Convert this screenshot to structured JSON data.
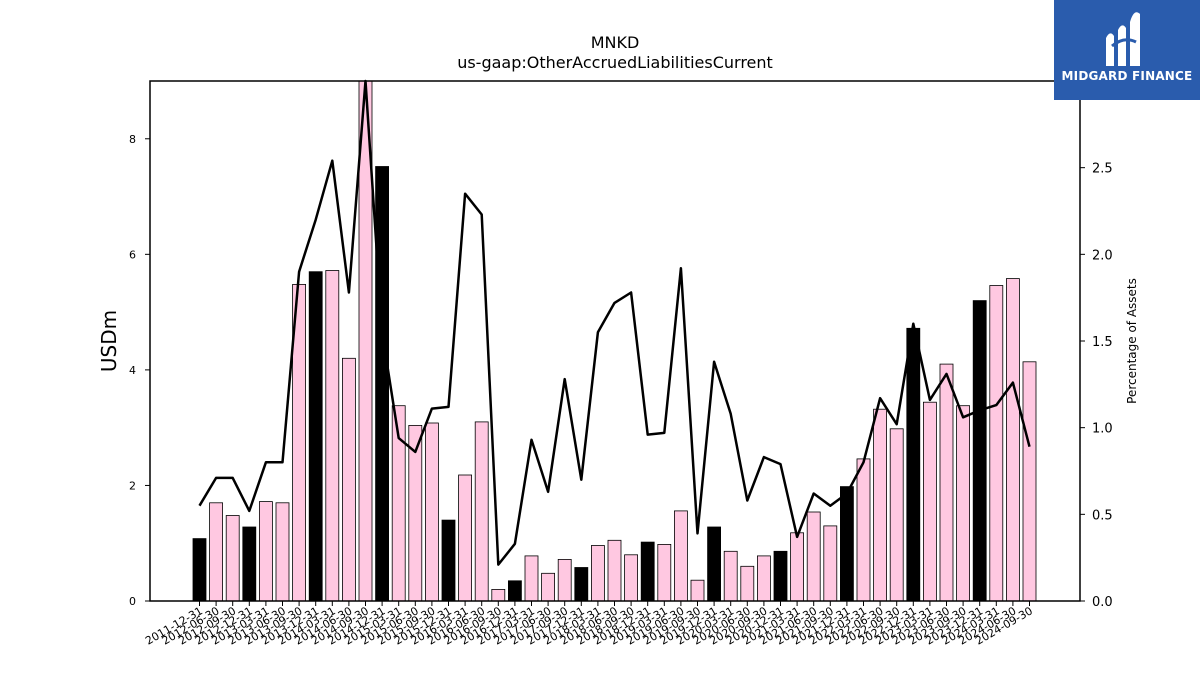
{
  "chart_data": {
    "type": "bar",
    "title": "MNKD",
    "subtitle": "us-gaap:OtherAccruedLiabilitiesCurrent",
    "ylabel": "USDm",
    "y2label": "Percentage of Assets",
    "ylim": [
      0,
      9
    ],
    "y2lim": [
      0,
      3.0
    ],
    "yticks": [
      0,
      2,
      4,
      6,
      8
    ],
    "y2ticks": [
      "0.0",
      "0.5",
      "1.0",
      "1.5",
      "2.0",
      "2.5"
    ],
    "colors": {
      "annual": "#000000",
      "quarterly": "#ffc8e1",
      "line": "#000000"
    },
    "categories": [
      "2011-12-31",
      "2012-06-30",
      "2012-09-30",
      "2012-12-31",
      "2013-03-31",
      "2013-06-30",
      "2013-09-30",
      "2013-12-31",
      "2014-03-31",
      "2014-06-30",
      "2014-09-30",
      "2014-12-31",
      "2015-03-31",
      "2015-06-30",
      "2015-09-30",
      "2015-12-31",
      "2016-03-31",
      "2016-06-30",
      "2016-09-30",
      "2016-12-31",
      "2017-03-31",
      "2017-06-30",
      "2017-09-30",
      "2017-12-31",
      "2018-03-31",
      "2018-06-30",
      "2018-09-30",
      "2018-12-31",
      "2019-03-31",
      "2019-06-30",
      "2019-09-30",
      "2019-12-31",
      "2020-03-31",
      "2020-06-30",
      "2020-09-30",
      "2020-12-31",
      "2021-03-31",
      "2021-06-30",
      "2021-09-30",
      "2021-12-31",
      "2022-03-31",
      "2022-06-30",
      "2022-09-30",
      "2022-12-31",
      "2023-03-31",
      "2023-06-30",
      "2023-09-30",
      "2023-12-31",
      "2024-03-31",
      "2024-06-30",
      "2024-09-30"
    ],
    "values": [
      1.08,
      1.7,
      1.48,
      1.28,
      1.72,
      1.7,
      5.48,
      5.7,
      5.72,
      4.2,
      9.0,
      7.52,
      3.38,
      3.04,
      3.08,
      1.4,
      2.18,
      3.1,
      0.2,
      0.35,
      0.78,
      0.48,
      0.72,
      0.58,
      0.96,
      1.05,
      0.8,
      1.02,
      0.98,
      1.56,
      0.36,
      1.28,
      0.86,
      0.6,
      0.78,
      0.86,
      1.18,
      1.54,
      1.3,
      1.98,
      2.46,
      3.32,
      2.98,
      4.72,
      3.44,
      4.1,
      3.38,
      5.2,
      5.46,
      5.58,
      4.14
    ],
    "annual": [
      true,
      false,
      false,
      true,
      false,
      false,
      false,
      true,
      false,
      false,
      false,
      true,
      false,
      false,
      false,
      true,
      false,
      false,
      false,
      true,
      false,
      false,
      false,
      true,
      false,
      false,
      false,
      true,
      false,
      false,
      false,
      true,
      false,
      false,
      false,
      true,
      false,
      false,
      false,
      true,
      false,
      false,
      false,
      true,
      false,
      false,
      false,
      true,
      false,
      false,
      false
    ],
    "pct_assets": [
      0.55,
      0.71,
      0.71,
      0.52,
      0.8,
      0.8,
      1.9,
      2.2,
      2.54,
      1.78,
      3.1,
      1.55,
      0.94,
      0.86,
      1.11,
      1.12,
      2.35,
      2.23,
      0.21,
      0.33,
      0.93,
      0.63,
      1.28,
      0.7,
      1.55,
      1.72,
      1.78,
      0.96,
      0.97,
      1.92,
      0.39,
      1.38,
      1.08,
      0.58,
      0.83,
      0.79,
      0.37,
      0.62,
      0.55,
      0.62,
      0.8,
      1.17,
      1.02,
      1.6,
      1.16,
      1.31,
      1.06,
      1.1,
      1.13,
      1.26,
      0.89
    ]
  },
  "logo": {
    "text": "MIDGARD FINANCE"
  }
}
